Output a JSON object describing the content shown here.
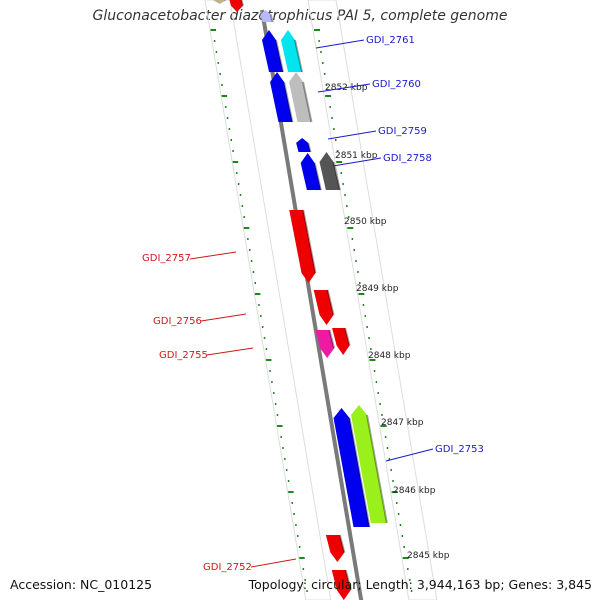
{
  "title": "Gluconacetobacter diazotrophicus PAI 5, complete genome",
  "footer": {
    "accession": "Accession: NC_010125",
    "topology": "Topology: circular",
    "length": "Length: 3,944,163 bp",
    "genes": "Genes: 3,845"
  },
  "colors": {
    "backbone": "#7a7a7a",
    "ticks": "#1b8a1b",
    "label_plus": "#1a1acc",
    "label_minus": "#cc1a1a",
    "leader": "#333333"
  },
  "scale_labels": [
    "2852 kbp",
    "2851 kbp",
    "2850 kbp",
    "2849 kbp",
    "2848 kbp",
    "2847 kbp",
    "2846 kbp",
    "2845 kbp"
  ],
  "genes": [
    {
      "id": "GDI_2761",
      "strand": "+",
      "color": "#0000ee"
    },
    {
      "id": "GDI_2760",
      "strand": "+",
      "color": "#0000ee"
    },
    {
      "id": "GDI_2759",
      "strand": "+",
      "color": "#0000ee"
    },
    {
      "id": "GDI_2758",
      "strand": "+",
      "color": "#0000ee"
    },
    {
      "id": "GDI_2757",
      "strand": "-",
      "color": "#ee0000"
    },
    {
      "id": "GDI_2756",
      "strand": "-",
      "color": "#ee0000"
    },
    {
      "id": "GDI_2755",
      "strand": "-",
      "color": "#ee0000"
    },
    {
      "id": "GDI_2753",
      "strand": "+",
      "color": "#0000ee"
    },
    {
      "id": "GDI_2752",
      "strand": "-",
      "color": "#ee0000"
    }
  ],
  "feature_blocks": [
    {
      "id": "cyan-block",
      "color": "#00e5ee"
    },
    {
      "id": "grey-block",
      "color": "#bdbdbd"
    },
    {
      "id": "dark-grey-block",
      "color": "#555555"
    },
    {
      "id": "magenta-block",
      "color": "#ee1aa3"
    },
    {
      "id": "green-block",
      "color": "#99f01a"
    },
    {
      "id": "olive-block",
      "color": "#bdb48c"
    }
  ]
}
